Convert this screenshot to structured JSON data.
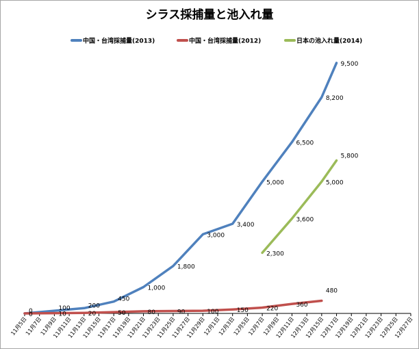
{
  "chart_data": {
    "type": "line",
    "title": "シラス採捕量と池入れ量",
    "xlabel": "",
    "ylabel": "",
    "grid": false,
    "legend_position": "top",
    "ylim": [
      0,
      9500
    ],
    "categories": [
      "11月5日",
      "11月7日",
      "11月9日",
      "11月11日",
      "11月13日",
      "11月15日",
      "11月17日",
      "11月19日",
      "11月21日",
      "11月23日",
      "11月25日",
      "11月27日",
      "11月29日",
      "12月1日",
      "12月3日",
      "12月5日",
      "12月7日",
      "12月9日",
      "12月11日",
      "12月13日",
      "12月15日",
      "12月17日",
      "12月19日",
      "12月21日",
      "12月23日",
      "12月25日",
      "12月27日"
    ],
    "series": [
      {
        "name": "中国・台湾採捕量(2013)",
        "color": "#4f81bd",
        "points": [
          {
            "x": "11月5日",
            "y": 0,
            "label": "0"
          },
          {
            "x": "11月9日",
            "y": 100,
            "label": "100"
          },
          {
            "x": "11月13日",
            "y": 200,
            "label": "200"
          },
          {
            "x": "11月17日",
            "y": 450,
            "label": "450"
          },
          {
            "x": "11月21日",
            "y": 1000,
            "label": "1,000"
          },
          {
            "x": "11月25日",
            "y": 1800,
            "label": "1,800"
          },
          {
            "x": "11月29日",
            "y": 3000,
            "label": "3,000"
          },
          {
            "x": "12月3日",
            "y": 3400,
            "label": "3,400"
          },
          {
            "x": "12月7日",
            "y": 5000,
            "label": "5,000"
          },
          {
            "x": "12月11日",
            "y": 6500,
            "label": "6,500"
          },
          {
            "x": "12月15日",
            "y": 8200,
            "label": "8,200"
          },
          {
            "x": "12月17日",
            "y": 9500,
            "label": "9,500"
          }
        ]
      },
      {
        "name": "中国・台湾採捕量(2012)",
        "color": "#c0504d",
        "points": [
          {
            "x": "11月5日",
            "y": 0,
            "label": "0"
          },
          {
            "x": "11月9日",
            "y": 10,
            "label": "10"
          },
          {
            "x": "11月13日",
            "y": 20,
            "label": "20"
          },
          {
            "x": "11月17日",
            "y": 50,
            "label": "50"
          },
          {
            "x": "11月21日",
            "y": 80,
            "label": "80"
          },
          {
            "x": "11月25日",
            "y": 90,
            "label": "90"
          },
          {
            "x": "11月29日",
            "y": 100,
            "label": "100"
          },
          {
            "x": "12月3日",
            "y": 150,
            "label": "150"
          },
          {
            "x": "12月7日",
            "y": 220,
            "label": "220"
          },
          {
            "x": "12月11日",
            "y": 360,
            "label": "360"
          },
          {
            "x": "12月15日",
            "y": 480,
            "label": "480"
          }
        ]
      },
      {
        "name": "日本の池入れ量(2014)",
        "color": "#9bbb59",
        "points": [
          {
            "x": "12月7日",
            "y": 2300,
            "label": "2,300"
          },
          {
            "x": "12月11日",
            "y": 3600,
            "label": "3,600"
          },
          {
            "x": "12月15日",
            "y": 5000,
            "label": "5,000"
          },
          {
            "x": "12月17日",
            "y": 5800,
            "label": "5,800"
          }
        ]
      }
    ]
  }
}
